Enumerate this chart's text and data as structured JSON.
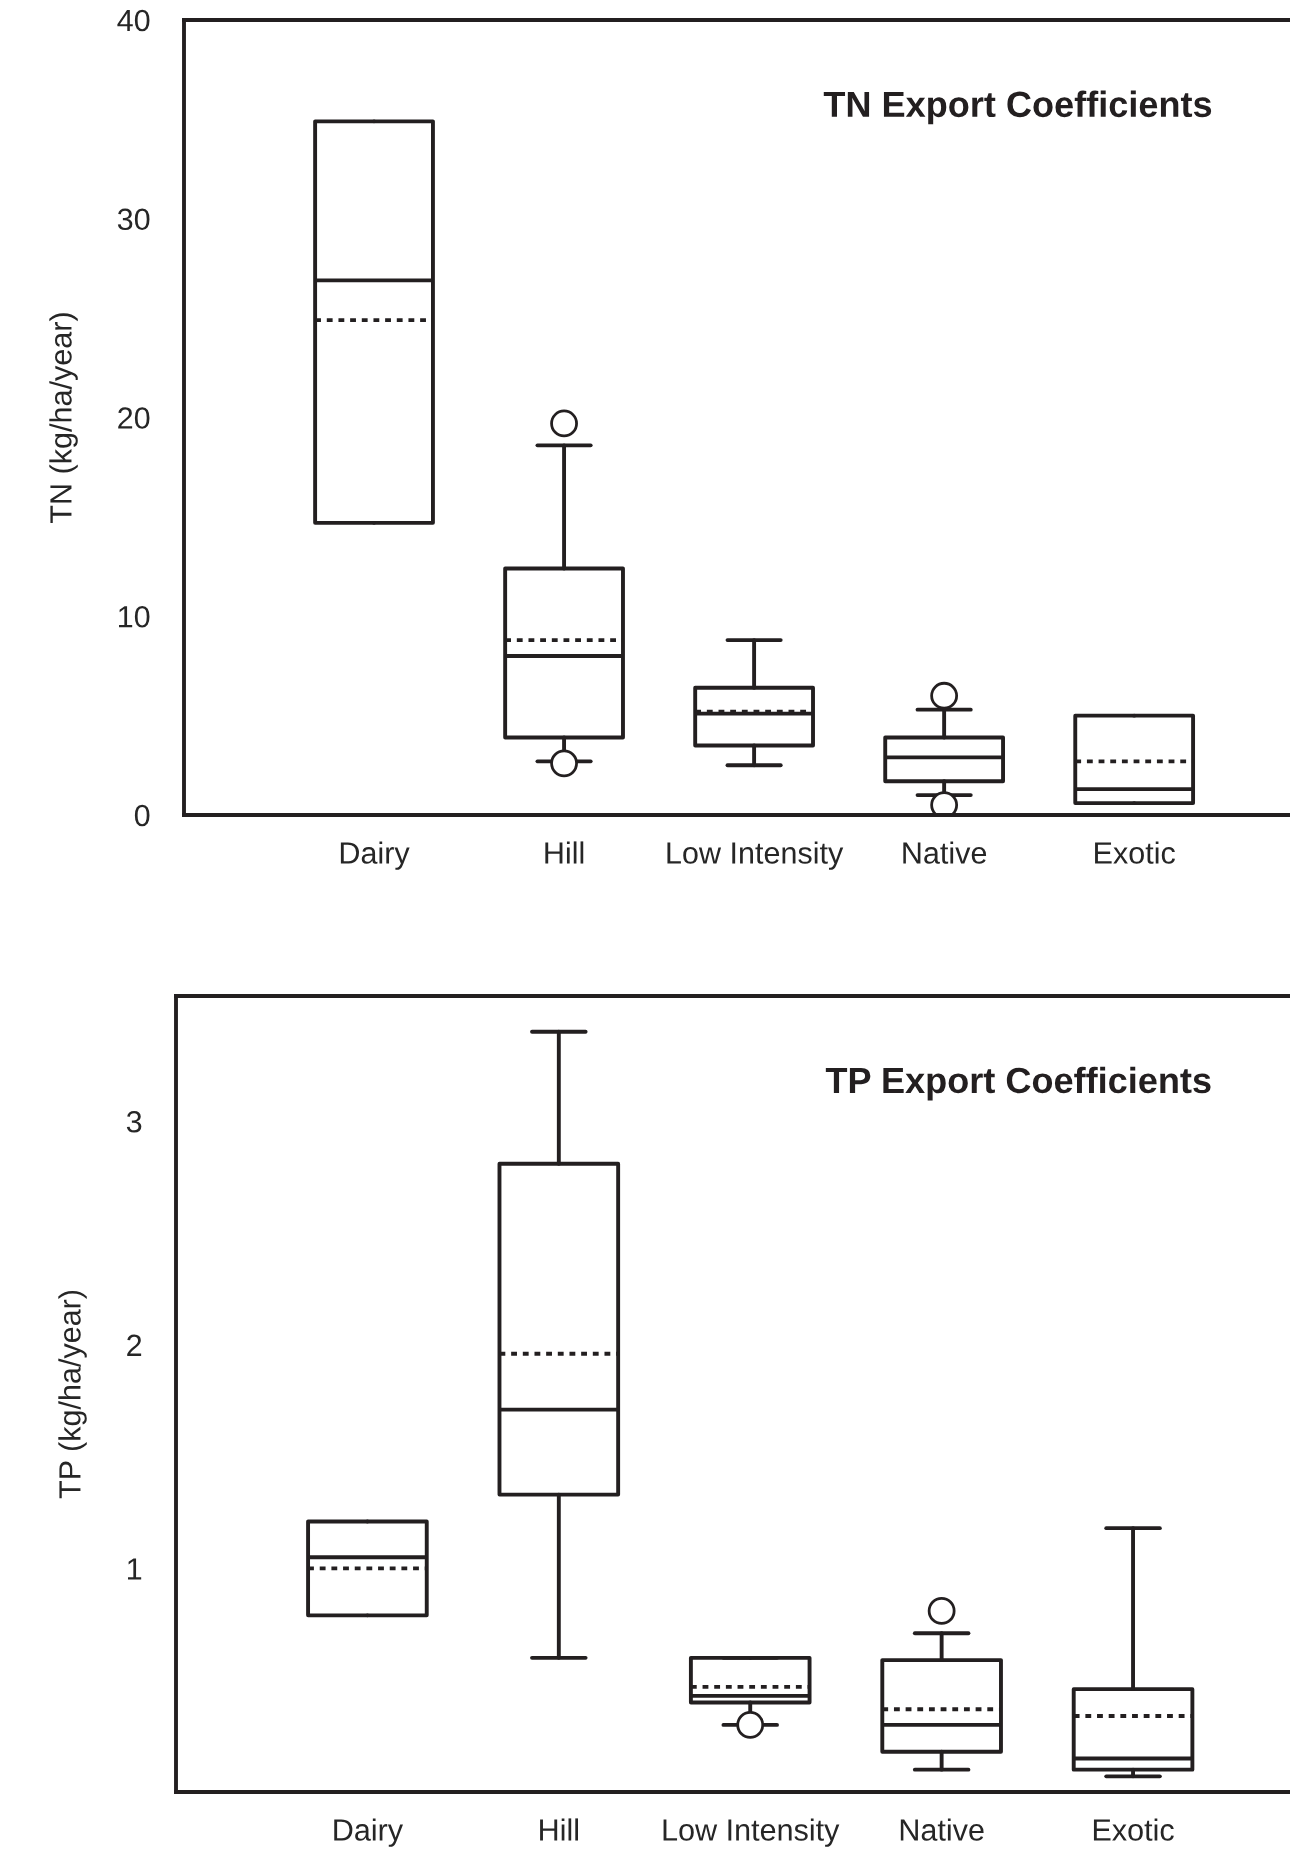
{
  "chart_data": [
    {
      "type": "box",
      "title": "TN Export Coefficients",
      "ylabel": "TN (kg/ha/year)",
      "categories": [
        "Dairy",
        "Hill",
        "Low Intensity",
        "Native",
        "Exotic"
      ],
      "ylim": [
        0,
        40
      ],
      "yticks": [
        0,
        10,
        20,
        30,
        40
      ],
      "boxes": [
        {
          "low": 14.7,
          "q1": 14.7,
          "median": 26.9,
          "q3": 34.9,
          "high": 34.9,
          "mean": 24.9
        },
        {
          "low": 2.7,
          "q1": 3.9,
          "median": 8.0,
          "q3": 12.4,
          "high": 18.6,
          "mean": 8.8,
          "outliers": [
            19.7,
            2.6
          ]
        },
        {
          "low": 2.5,
          "q1": 3.5,
          "median": 5.1,
          "q3": 6.4,
          "high": 8.8,
          "mean": 5.2
        },
        {
          "low": 1.0,
          "q1": 1.7,
          "median": 2.9,
          "q3": 3.9,
          "high": 5.3,
          "outliers": [
            6.0,
            0.5
          ]
        },
        {
          "low": 0.6,
          "q1": 0.6,
          "median": 1.3,
          "q3": 5.0,
          "high": 5.0,
          "mean": 2.7
        }
      ]
    },
    {
      "type": "box",
      "title": "TP Export Coefficients",
      "ylabel": "TP (kg/ha/year)",
      "categories": [
        "Dairy",
        "Hill",
        "Low Intensity",
        "Native",
        "Exotic"
      ],
      "ylim": [
        0,
        3.56
      ],
      "yticks": [
        1,
        2,
        3
      ],
      "boxes": [
        {
          "low": 0.79,
          "q1": 0.79,
          "median": 1.05,
          "q3": 1.21,
          "high": 1.21,
          "mean": 1.0
        },
        {
          "low": 0.6,
          "q1": 1.33,
          "median": 1.71,
          "q3": 2.81,
          "high": 3.4,
          "mean": 1.96
        },
        {
          "low": 0.3,
          "q1": 0.4,
          "median": 0.43,
          "q3": 0.6,
          "high": 0.6,
          "mean": 0.47,
          "outliers": [
            0.3
          ]
        },
        {
          "low": 0.1,
          "q1": 0.18,
          "median": 0.3,
          "q3": 0.59,
          "high": 0.71,
          "mean": 0.37,
          "outliers": [
            0.81
          ]
        },
        {
          "low": 0.07,
          "q1": 0.1,
          "median": 0.15,
          "q3": 0.46,
          "high": 1.18,
          "mean": 0.34
        }
      ]
    }
  ]
}
